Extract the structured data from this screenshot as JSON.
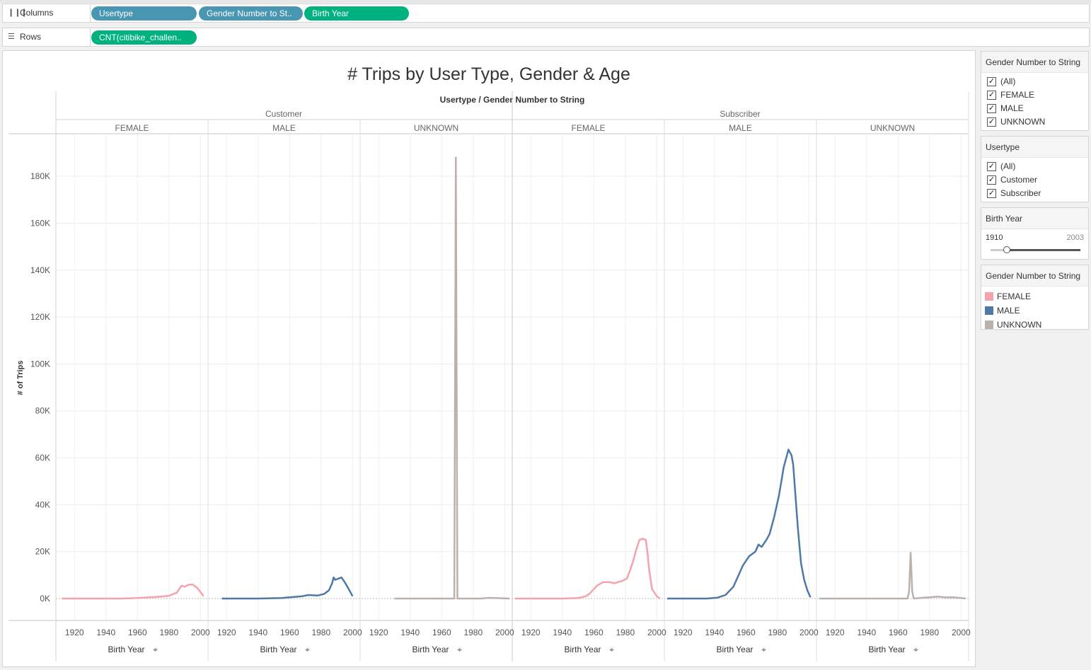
{
  "shelves": {
    "columns_label": "Columns",
    "rows_label": "Rows",
    "columns_icon": "columns-icon",
    "rows_icon": "rows-icon",
    "column_pills": [
      "Usertype",
      "Gender Number to St..",
      "Birth Year"
    ],
    "row_pills": [
      "CNT(citibike_challen.."
    ]
  },
  "view": {
    "title": "# Trips by User Type, Gender & Age",
    "header_title": "Usertype  /  Gender Number to String",
    "usertypes": [
      "Customer",
      "Subscriber"
    ],
    "genders": [
      "FEMALE",
      "MALE",
      "UNKNOWN",
      "FEMALE",
      "MALE",
      "UNKNOWN"
    ],
    "y_axis_label": "# of Trips",
    "x_axis_label": "Birth Year",
    "pin_icon": "pin-icon"
  },
  "chart_data": {
    "type": "line",
    "title": "# Trips by User Type, Gender & Age",
    "xlabel": "Birth Year",
    "ylabel": "# of Trips",
    "ylim": [
      0,
      198000
    ],
    "y_ticks": [
      "0K",
      "20K",
      "40K",
      "60K",
      "80K",
      "100K",
      "120K",
      "140K",
      "160K",
      "180K"
    ],
    "x_ticks": [
      "1920",
      "1940",
      "1960",
      "1980",
      "2000"
    ],
    "colors": {
      "FEMALE": "#f4a3ad",
      "MALE": "#4e79a7",
      "UNKNOWN": "#bab0ac"
    },
    "panes": [
      {
        "usertype": "Customer",
        "gender": "FEMALE",
        "color": "#f4a3ad",
        "points": [
          [
            1912,
            0
          ],
          [
            1930,
            0
          ],
          [
            1950,
            0
          ],
          [
            1960,
            200
          ],
          [
            1970,
            600
          ],
          [
            1975,
            800
          ],
          [
            1980,
            1200
          ],
          [
            1985,
            2500
          ],
          [
            1988,
            5500
          ],
          [
            1990,
            5000
          ],
          [
            1992,
            5800
          ],
          [
            1995,
            6000
          ],
          [
            1998,
            4500
          ],
          [
            2002,
            1000
          ]
        ]
      },
      {
        "usertype": "Customer",
        "gender": "MALE",
        "color": "#4e79a7",
        "points": [
          [
            1917,
            0
          ],
          [
            1940,
            0
          ],
          [
            1955,
            200
          ],
          [
            1960,
            500
          ],
          [
            1968,
            1000
          ],
          [
            1972,
            1500
          ],
          [
            1978,
            1300
          ],
          [
            1982,
            2000
          ],
          [
            1985,
            3500
          ],
          [
            1987,
            6500
          ],
          [
            1988,
            9000
          ],
          [
            1989,
            8000
          ],
          [
            1991,
            8500
          ],
          [
            1993,
            9000
          ],
          [
            1995,
            7000
          ],
          [
            1998,
            3500
          ],
          [
            2000,
            1000
          ]
        ]
      },
      {
        "usertype": "Customer",
        "gender": "UNKNOWN",
        "color": "#bab0ac",
        "points": [
          [
            1930,
            0
          ],
          [
            1968,
            0
          ],
          [
            1969,
            188000
          ],
          [
            1970,
            0
          ],
          [
            1985,
            0
          ],
          [
            1990,
            300
          ],
          [
            2000,
            100
          ],
          [
            2003,
            0
          ]
        ]
      },
      {
        "usertype": "Subscriber",
        "gender": "FEMALE",
        "color": "#f4a3ad",
        "points": [
          [
            1910,
            0
          ],
          [
            1940,
            0
          ],
          [
            1950,
            200
          ],
          [
            1955,
            1000
          ],
          [
            1958,
            2500
          ],
          [
            1962,
            5500
          ],
          [
            1966,
            7000
          ],
          [
            1970,
            7000
          ],
          [
            1973,
            6500
          ],
          [
            1978,
            7500
          ],
          [
            1981,
            8500
          ],
          [
            1983,
            12000
          ],
          [
            1985,
            16000
          ],
          [
            1987,
            21000
          ],
          [
            1989,
            25000
          ],
          [
            1991,
            25500
          ],
          [
            1993,
            25000
          ],
          [
            1994,
            20000
          ],
          [
            1995,
            13000
          ],
          [
            1997,
            4000
          ],
          [
            2000,
            1000
          ],
          [
            2002,
            0
          ]
        ]
      },
      {
        "usertype": "Subscriber",
        "gender": "MALE",
        "color": "#4e79a7",
        "points": [
          [
            1910,
            0
          ],
          [
            1935,
            0
          ],
          [
            1942,
            400
          ],
          [
            1947,
            1500
          ],
          [
            1952,
            5000
          ],
          [
            1955,
            9500
          ],
          [
            1958,
            14000
          ],
          [
            1962,
            18000
          ],
          [
            1966,
            20000
          ],
          [
            1968,
            23000
          ],
          [
            1970,
            22000
          ],
          [
            1973,
            25000
          ],
          [
            1975,
            27500
          ],
          [
            1978,
            35000
          ],
          [
            1981,
            44000
          ],
          [
            1984,
            56000
          ],
          [
            1986,
            61000
          ],
          [
            1987,
            63500
          ],
          [
            1989,
            61000
          ],
          [
            1990,
            57000
          ],
          [
            1991,
            48000
          ],
          [
            1993,
            30000
          ],
          [
            1995,
            15000
          ],
          [
            1997,
            8000
          ],
          [
            1999,
            3500
          ],
          [
            2001,
            500
          ]
        ]
      },
      {
        "usertype": "Subscriber",
        "gender": "UNKNOWN",
        "color": "#bab0ac",
        "points": [
          [
            1910,
            0
          ],
          [
            1966,
            0
          ],
          [
            1967,
            3000
          ],
          [
            1968,
            19500
          ],
          [
            1969,
            3000
          ],
          [
            1970,
            0
          ],
          [
            1975,
            300
          ],
          [
            1980,
            500
          ],
          [
            1985,
            800
          ],
          [
            1990,
            500
          ],
          [
            1995,
            500
          ],
          [
            2000,
            200
          ],
          [
            2003,
            0
          ]
        ]
      }
    ]
  },
  "filters": {
    "gender": {
      "title": "Gender Number to String",
      "items": [
        "(All)",
        "FEMALE",
        "MALE",
        "UNKNOWN"
      ]
    },
    "usertype": {
      "title": "Usertype",
      "items": [
        "(All)",
        "Customer",
        "Subscriber"
      ]
    },
    "birth_year": {
      "title": "Birth Year",
      "min": "1910",
      "max": "2003",
      "slider_low": 1910,
      "slider_high": 2003
    }
  },
  "legend": {
    "title": "Gender Number to String",
    "items": [
      {
        "label": "FEMALE",
        "color": "#f4a3ad"
      },
      {
        "label": "MALE",
        "color": "#4e79a7"
      },
      {
        "label": "UNKNOWN",
        "color": "#bab0ac"
      }
    ]
  }
}
